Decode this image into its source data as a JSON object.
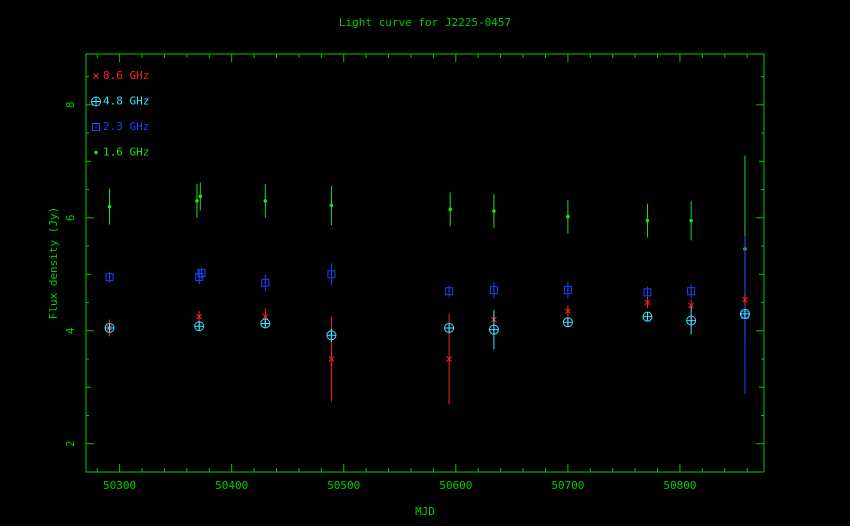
{
  "chart_data": {
    "type": "scatter",
    "title": "Light curve for J2225-0457",
    "xlabel": "MJD",
    "ylabel": "Flux density (Jy)",
    "xlim": [
      50270,
      50875
    ],
    "ylim": [
      1.5,
      8.9
    ],
    "xticks": [
      50300,
      50400,
      50500,
      50600,
      50700,
      50800
    ],
    "xtick_labels": [
      "50300",
      "50400",
      "50500",
      "50600",
      "50700",
      "50800"
    ],
    "yticks": [
      2,
      4,
      6,
      8
    ],
    "ytick_labels": [
      "2",
      "4",
      "6",
      "8"
    ],
    "legend_position": "top-left",
    "axis_color": "#00cc00",
    "series": [
      {
        "name": "8.6 GHz",
        "color": "#ff2020",
        "marker": "cross",
        "points": [
          {
            "x": 50291,
            "y": 4.05,
            "err": 0.15
          },
          {
            "x": 50371,
            "y": 4.25,
            "err": 0.1
          },
          {
            "x": 50430,
            "y": 4.25,
            "err": 0.15
          },
          {
            "x": 50489,
            "y": 3.5,
            "err": 0.75
          },
          {
            "x": 50594,
            "y": 3.5,
            "err": 0.8
          },
          {
            "x": 50634,
            "y": 4.2,
            "err": 0.1
          },
          {
            "x": 50700,
            "y": 4.35,
            "err": 0.1
          },
          {
            "x": 50771,
            "y": 4.5,
            "err": 0.1
          },
          {
            "x": 50810,
            "y": 4.45,
            "err": 0.1
          },
          {
            "x": 50858,
            "y": 4.55,
            "err": 0.1
          }
        ]
      },
      {
        "name": "4.8 GHz",
        "color": "#40e0ff",
        "marker": "circle-plus",
        "points": [
          {
            "x": 50291,
            "y": 4.05,
            "err": 0.08
          },
          {
            "x": 50371,
            "y": 4.08,
            "err": 0.08
          },
          {
            "x": 50430,
            "y": 4.13,
            "err": 0.08
          },
          {
            "x": 50489,
            "y": 3.92,
            "err": 0.12
          },
          {
            "x": 50594,
            "y": 4.05,
            "err": 0.08
          },
          {
            "x": 50634,
            "y": 4.02,
            "err": 0.35
          },
          {
            "x": 50700,
            "y": 4.15,
            "err": 0.08
          },
          {
            "x": 50771,
            "y": 4.25,
            "err": 0.08
          },
          {
            "x": 50810,
            "y": 4.18,
            "err": 0.25
          },
          {
            "x": 50858,
            "y": 4.3,
            "err": 0.08
          }
        ]
      },
      {
        "name": "2.3 GHz",
        "color": "#2040ff",
        "marker": "square",
        "points": [
          {
            "x": 50291,
            "y": 4.95,
            "err": 0.1
          },
          {
            "x": 50371,
            "y": 4.95,
            "err": 0.12
          },
          {
            "x": 50373,
            "y": 5.02,
            "err": 0.1
          },
          {
            "x": 50430,
            "y": 4.85,
            "err": 0.15
          },
          {
            "x": 50489,
            "y": 5.0,
            "err": 0.2
          },
          {
            "x": 50594,
            "y": 4.7,
            "err": 0.1
          },
          {
            "x": 50634,
            "y": 4.72,
            "err": 0.15
          },
          {
            "x": 50700,
            "y": 4.72,
            "err": 0.15
          },
          {
            "x": 50771,
            "y": 4.68,
            "err": 0.1
          },
          {
            "x": 50810,
            "y": 4.7,
            "err": 0.12
          },
          {
            "x": 50858,
            "y": 4.28,
            "err": 1.4
          }
        ]
      },
      {
        "name": "1.6 GHz",
        "color": "#20dd20",
        "marker": "dot",
        "points": [
          {
            "x": 50291,
            "y": 6.2,
            "err": 0.32
          },
          {
            "x": 50369,
            "y": 6.3,
            "err": 0.3
          },
          {
            "x": 50372,
            "y": 6.38,
            "err": 0.25
          },
          {
            "x": 50430,
            "y": 6.3,
            "err": 0.3
          },
          {
            "x": 50489,
            "y": 6.22,
            "err": 0.35
          },
          {
            "x": 50595,
            "y": 6.15,
            "err": 0.3
          },
          {
            "x": 50634,
            "y": 6.12,
            "err": 0.3
          },
          {
            "x": 50700,
            "y": 6.02,
            "err": 0.3
          },
          {
            "x": 50771,
            "y": 5.95,
            "err": 0.3
          },
          {
            "x": 50810,
            "y": 5.95,
            "err": 0.35
          },
          {
            "x": 50858,
            "y": 5.45,
            "err": 1.65
          }
        ]
      }
    ]
  }
}
